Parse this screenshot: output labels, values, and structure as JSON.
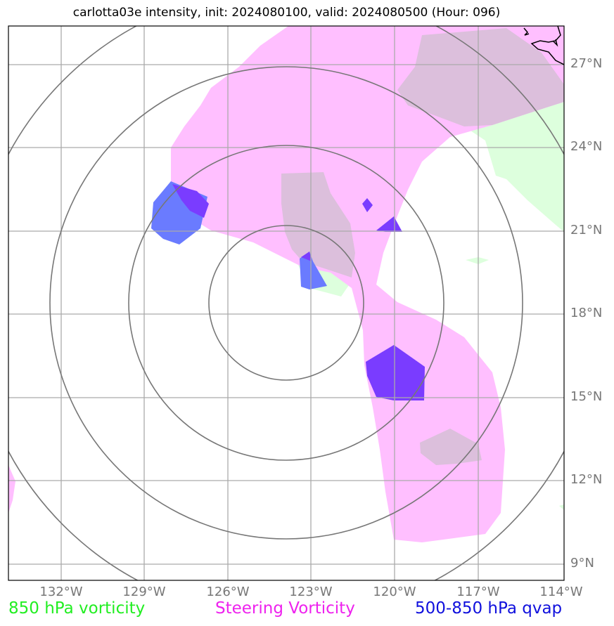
{
  "title": "carlotta03e intensity, init: 2024080100, valid: 2024080500 (Hour: 096)",
  "lat_ticks": [
    "27°N",
    "24°N",
    "21°N",
    "18°N",
    "15°N",
    "12°N",
    "9°N"
  ],
  "lon_ticks": [
    "132°W",
    "129°W",
    "126°W",
    "123°W",
    "120°W",
    "117°W",
    "114°W"
  ],
  "legend": {
    "vorticity_850": {
      "label": "850 hPa vorticity",
      "color": "#22ee22"
    },
    "steering_vorticity": {
      "label": "Steering Vorticity",
      "color": "#ee22ee"
    },
    "qvap": {
      "label": "500-850 hPa qvap",
      "color": "#1010dd"
    }
  },
  "colors": {
    "steering_fill": "#ffbfff",
    "vorticity_fill": "#ddffdd",
    "overlap_fill": "#dcbfdc",
    "qvap_fill": "#6a7bff",
    "qvap_strong_fill": "#7a3cff",
    "range_rings": "#777777",
    "grid": "#aaaaaa",
    "coast": "#000000"
  }
}
